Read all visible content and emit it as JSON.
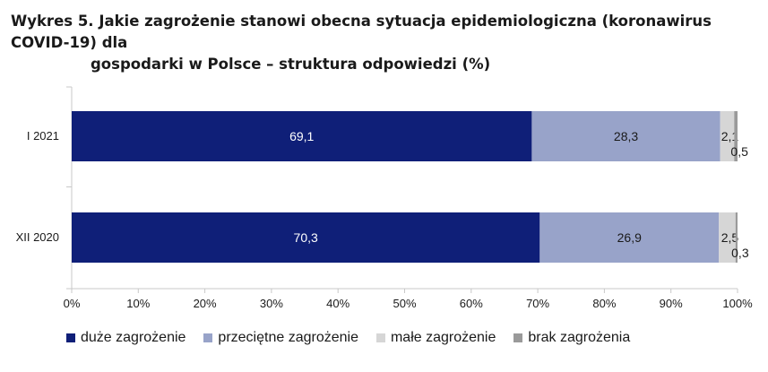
{
  "title_line1": "Wykres 5. Jakie zagrożenie stanowi obecna sytuacja epidemiologiczna (koronawirus COVID-19) dla",
  "title_line2": "gospodarki w Polsce – struktura odpowiedzi (%)",
  "colors": {
    "duze": "#0f1f78",
    "przecietne": "#98a3c9",
    "male": "#d6d6d6",
    "brak": "#9a9a9a",
    "axis": "#c8c8c8",
    "label_on_dark": "#ffffff",
    "label_on_light": "#1a1a1a"
  },
  "chart_data": {
    "type": "bar",
    "orientation": "horizontal",
    "stacked": true,
    "categories": [
      "I 2021",
      "XII 2020"
    ],
    "series": [
      {
        "name": "duże zagrożenie",
        "values": [
          69.1,
          70.3
        ],
        "labels": [
          "69,1",
          "70,3"
        ]
      },
      {
        "name": "przeciętne zagrożenie",
        "values": [
          28.3,
          26.9
        ],
        "labels": [
          "28,3",
          "26,9"
        ]
      },
      {
        "name": "małe zagrożenie",
        "values": [
          2.1,
          2.5
        ],
        "labels": [
          "2,1",
          "2,5"
        ]
      },
      {
        "name": "brak zagrożenia",
        "values": [
          0.5,
          0.3
        ],
        "labels": [
          "0,5",
          "0,3"
        ]
      }
    ],
    "xlim": [
      0,
      100
    ],
    "x_ticks": [
      "0%",
      "10%",
      "20%",
      "30%",
      "40%",
      "50%",
      "60%",
      "70%",
      "80%",
      "90%",
      "100%"
    ],
    "legend": "bottom",
    "grid": false
  }
}
